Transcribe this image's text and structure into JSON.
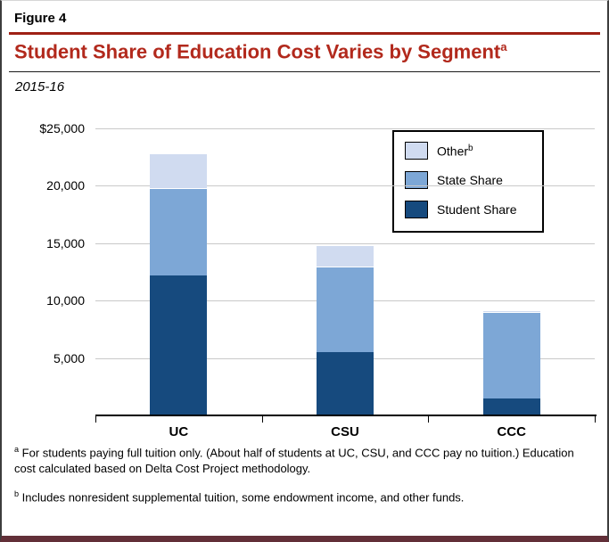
{
  "header": {
    "figure_label": "Figure 4",
    "title": "Student Share of Education Cost Varies by Segment",
    "title_superscript": "a",
    "subtitle": "2015-16"
  },
  "colors": {
    "title_red": "#b2291c",
    "rule_red": "#9e2015",
    "student_share": "#164a7e",
    "state_share": "#7da7d6",
    "other": "#d0dbf0",
    "gridline": "#c9c9c9",
    "frame_bottom": "#622f38"
  },
  "chart_data": {
    "type": "bar",
    "stacked": true,
    "title": "Student Share of Education Cost Varies by Segment",
    "subtitle": "2015-16",
    "categories": [
      "UC",
      "CSU",
      "CCC"
    ],
    "series": [
      {
        "name": "Student Share",
        "color_key": "student_share",
        "values": [
          12200,
          5500,
          1500
        ]
      },
      {
        "name": "State Share",
        "color_key": "state_share",
        "values": [
          7600,
          7500,
          7500
        ]
      },
      {
        "name": "Other",
        "color_key": "other",
        "values": [
          3000,
          1800,
          150
        ]
      }
    ],
    "totals": [
      22800,
      14800,
      9150
    ],
    "ylim": [
      0,
      25000
    ],
    "yticks": [
      {
        "value": 25000,
        "label": "$25,000"
      },
      {
        "value": 20000,
        "label": "20,000"
      },
      {
        "value": 15000,
        "label": "15,000"
      },
      {
        "value": 10000,
        "label": "10,000"
      },
      {
        "value": 5000,
        "label": "5,000"
      }
    ],
    "grid": true,
    "legend_position": "top-right",
    "legend": [
      {
        "label": "Other",
        "superscript": "b",
        "color_key": "other"
      },
      {
        "label": "State Share",
        "superscript": "",
        "color_key": "state_share"
      },
      {
        "label": "Student Share",
        "superscript": "",
        "color_key": "student_share"
      }
    ]
  },
  "footnotes": [
    {
      "marker": "a",
      "text": "For students paying full tuition only. (About half of students at UC, CSU, and CCC pay no tuition.) Education cost calculated based on Delta Cost Project methodology."
    },
    {
      "marker": "b",
      "text": "Includes nonresident supplemental tuition, some endowment income, and other funds."
    }
  ]
}
